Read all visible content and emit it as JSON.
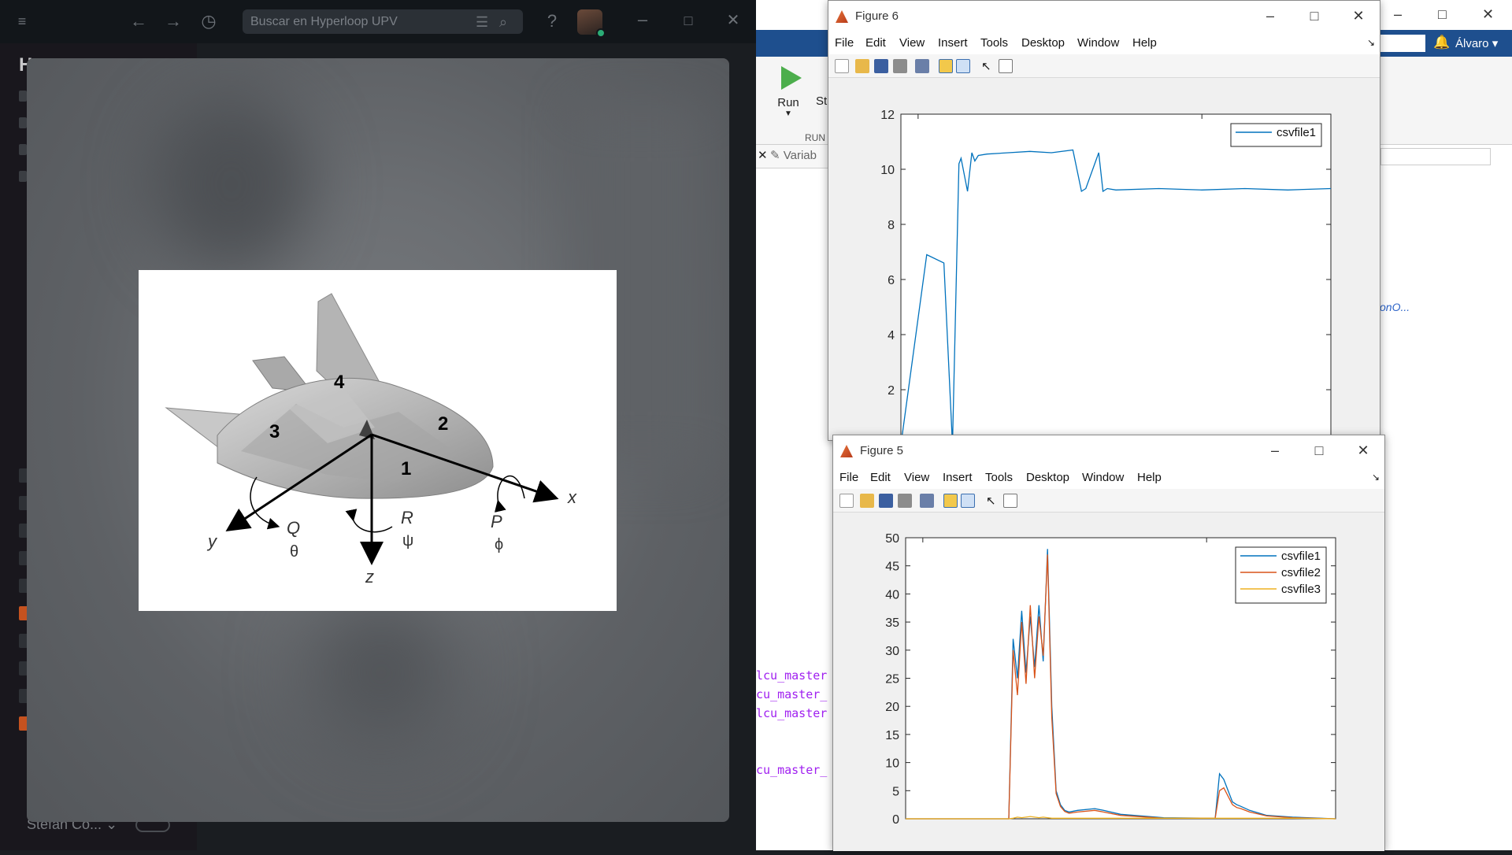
{
  "chat": {
    "search_placeholder": "Buscar en Hyperloop UPV",
    "workspace_initial": "H",
    "user_footer": "Stefan Co...",
    "icons": [
      "menu-icon",
      "back-arrow-icon",
      "forward-arrow-icon",
      "history-icon",
      "filter-icon",
      "search-icon",
      "help-icon",
      "minimize-icon",
      "maximize-icon",
      "close-icon"
    ]
  },
  "diagram": {
    "labels": {
      "n1": "1",
      "n2": "2",
      "n3": "3",
      "n4": "4",
      "x": "x",
      "y": "y",
      "z": "z",
      "Q": "Q",
      "theta": "θ",
      "R": "R",
      "psi": "ψ",
      "P": "P",
      "phi": "ϕ"
    }
  },
  "matlab": {
    "ribbon": {
      "run_label": "Run",
      "step_label": "St",
      "section_label": "RUN"
    },
    "variable_tab": "Variab",
    "user": "Álvaro",
    "link_text": "onO...",
    "code_lines": [
      "lcu_master",
      "cu_master_",
      "lcu_master",
      "cu_master_"
    ]
  },
  "figure6": {
    "title": "Figure 6",
    "menu": [
      "File",
      "Edit",
      "View",
      "Insert",
      "Tools",
      "Desktop",
      "Window",
      "Help"
    ]
  },
  "figure5": {
    "title": "Figure 5",
    "menu": [
      "File",
      "Edit",
      "View",
      "Insert",
      "Tools",
      "Desktop",
      "Window",
      "Help"
    ]
  },
  "chart_data": [
    {
      "type": "line",
      "window": "Figure 6",
      "title": "",
      "xlabel": "",
      "ylabel": "",
      "ylim": [
        0,
        12
      ],
      "yticks": [
        2,
        4,
        6,
        8,
        10,
        12
      ],
      "xticks": [],
      "legend": {
        "entries": [
          "csvfile1"
        ],
        "placement": "top-right"
      },
      "colors": [
        "#0072bd"
      ],
      "series": [
        {
          "name": "csvfile1",
          "x": [
            0,
            0.06,
            0.1,
            0.12,
            0.135,
            0.14,
            0.155,
            0.165,
            0.172,
            0.18,
            0.2,
            0.25,
            0.3,
            0.35,
            0.4,
            0.42,
            0.43,
            0.46,
            0.47,
            0.48,
            0.5,
            0.6,
            0.7,
            0.8,
            0.9,
            1.0
          ],
          "y": [
            0,
            6.9,
            6.6,
            0,
            10.2,
            10.4,
            9.2,
            10.6,
            10.3,
            10.5,
            10.55,
            10.6,
            10.65,
            10.6,
            10.7,
            9.2,
            9.3,
            10.6,
            9.2,
            9.3,
            9.25,
            9.3,
            9.25,
            9.3,
            9.25,
            9.3
          ]
        }
      ]
    },
    {
      "type": "line",
      "window": "Figure 5",
      "title": "",
      "xlabel": "",
      "ylabel": "",
      "ylim": [
        0,
        50
      ],
      "yticks": [
        0,
        5,
        10,
        15,
        20,
        25,
        30,
        35,
        40,
        45,
        50
      ],
      "xticks": [],
      "legend": {
        "entries": [
          "csvfile1",
          "csvfile2",
          "csvfile3"
        ],
        "placement": "top-right"
      },
      "colors": [
        "#0072bd",
        "#d95319",
        "#edb120"
      ],
      "x": [
        0,
        0.24,
        0.25,
        0.26,
        0.27,
        0.28,
        0.29,
        0.3,
        0.31,
        0.32,
        0.33,
        0.34,
        0.35,
        0.36,
        0.37,
        0.38,
        0.4,
        0.44,
        0.46,
        0.5,
        0.6,
        0.72,
        0.73,
        0.74,
        0.76,
        0.77,
        0.78,
        0.8,
        0.84,
        0.9,
        1.0
      ],
      "series": [
        {
          "name": "csvfile1",
          "values": [
            0,
            0,
            32,
            25,
            37,
            26,
            36,
            27,
            38,
            28,
            48,
            20,
            5,
            2.5,
            1.5,
            1.2,
            1.5,
            1.8,
            1.5,
            0.8,
            0.2,
            0.1,
            8,
            7,
            3,
            2.5,
            2.2,
            1.5,
            0.6,
            0.3,
            0
          ]
        },
        {
          "name": "csvfile2",
          "values": [
            0,
            0,
            30,
            22,
            35,
            24,
            38,
            25,
            36,
            29,
            47,
            18,
            4.5,
            2.2,
            1.3,
            1.0,
            1.2,
            1.5,
            1.2,
            0.6,
            0.1,
            0.1,
            5,
            5.5,
            2.5,
            2.0,
            1.8,
            1.2,
            0.5,
            0.2,
            0
          ]
        },
        {
          "name": "csvfile3",
          "values": [
            0,
            0,
            0.1,
            0.3,
            0.2,
            0.3,
            0.4,
            0.3,
            0.2,
            0.3,
            0.2,
            0.1,
            0.1,
            0.1,
            0.1,
            0.1,
            0.1,
            0.1,
            0.1,
            0.1,
            0.1,
            0.1,
            0.1,
            0.1,
            0.1,
            0.1,
            0.1,
            0.1,
            0.1,
            0.1,
            0
          ]
        }
      ]
    }
  ]
}
